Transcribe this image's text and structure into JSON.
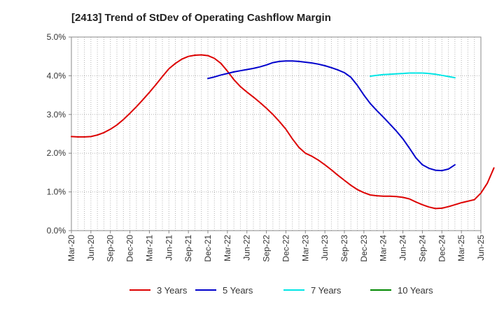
{
  "chart_data": {
    "type": "line",
    "title": "[2413]  Trend of StDev of Operating Cashflow Margin",
    "xlabel": "",
    "ylabel": "",
    "ylim": [
      0,
      5
    ],
    "y_ticks": [
      0,
      1,
      2,
      3,
      4,
      5
    ],
    "y_tick_labels": [
      "0.0%",
      "1.0%",
      "2.0%",
      "3.0%",
      "4.0%",
      "5.0%"
    ],
    "x_tick_labels": [
      "Mar-20",
      "Jun-20",
      "Sep-20",
      "Dec-20",
      "Mar-21",
      "Jun-21",
      "Sep-21",
      "Dec-21",
      "Mar-22",
      "Jun-22",
      "Sep-22",
      "Dec-22",
      "Mar-23",
      "Jun-23",
      "Sep-23",
      "Dec-23",
      "Mar-24",
      "Jun-24",
      "Sep-24",
      "Dec-24",
      "Mar-25",
      "Jun-25"
    ],
    "x_start": "Mar-20",
    "months_total": 63,
    "grid": true,
    "legend_position": "bottom",
    "series": [
      {
        "name": "3 Years",
        "color": "#dd0000",
        "start_month": 0,
        "values": [
          2.43,
          2.42,
          2.42,
          2.43,
          2.47,
          2.53,
          2.62,
          2.73,
          2.87,
          3.03,
          3.2,
          3.38,
          3.57,
          3.77,
          3.98,
          4.18,
          4.32,
          4.43,
          4.5,
          4.53,
          4.54,
          4.52,
          4.45,
          4.32,
          4.12,
          3.9,
          3.72,
          3.58,
          3.45,
          3.31,
          3.16,
          3.0,
          2.82,
          2.62,
          2.37,
          2.15,
          2.0,
          1.92,
          1.82,
          1.7,
          1.57,
          1.43,
          1.3,
          1.17,
          1.06,
          0.98,
          0.92,
          0.9,
          0.89,
          0.89,
          0.88,
          0.86,
          0.82,
          0.74,
          0.67,
          0.61,
          0.57,
          0.58,
          0.62,
          0.67,
          0.72,
          0.76,
          0.8,
          0.97,
          1.23,
          1.62
        ]
      },
      {
        "name": "5 Years",
        "color": "#0000cc",
        "start_month": 21,
        "values": [
          3.93,
          3.97,
          4.02,
          4.06,
          4.1,
          4.13,
          4.16,
          4.19,
          4.23,
          4.28,
          4.34,
          4.37,
          4.38,
          4.38,
          4.37,
          4.35,
          4.33,
          4.3,
          4.26,
          4.21,
          4.15,
          4.08,
          3.96,
          3.75,
          3.5,
          3.28,
          3.1,
          2.93,
          2.75,
          2.57,
          2.37,
          2.13,
          1.88,
          1.7,
          1.61,
          1.56,
          1.55,
          1.59,
          1.7
        ]
      },
      {
        "name": "7 Years",
        "color": "#00e5e5",
        "start_month": 46,
        "values": [
          3.99,
          4.01,
          4.03,
          4.04,
          4.05,
          4.06,
          4.07,
          4.07,
          4.07,
          4.06,
          4.04,
          4.01,
          3.98,
          3.95
        ]
      },
      {
        "name": "10 Years",
        "color": "#008800",
        "start_month": 0,
        "values": []
      }
    ]
  }
}
